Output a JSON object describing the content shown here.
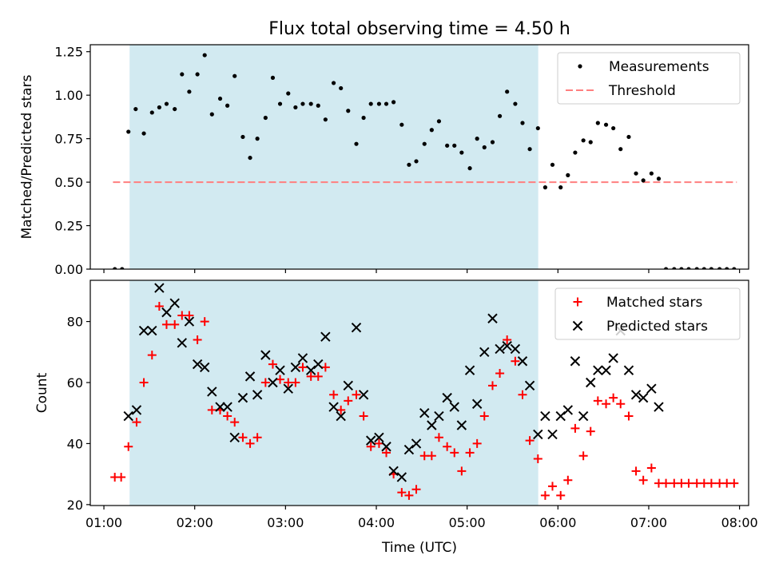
{
  "title": "Flux total observing time = 4.50 h",
  "colors": {
    "shade": "#add8e6",
    "measurements": "#000000",
    "threshold": "#ff7f7f",
    "matched": "#ff0000",
    "predicted": "#000000"
  },
  "chart_data": [
    {
      "type": "scatter",
      "ylabel": "Matched/Predicted stars",
      "xlim": [
        0.85,
        8.1
      ],
      "ylim": [
        0,
        1.29
      ],
      "yticks": [
        0,
        0.25,
        0.5,
        0.75,
        1.0,
        1.25
      ],
      "ytick_labels": [
        "0.00",
        "0.25",
        "0.50",
        "0.75",
        "1.00",
        "1.25"
      ],
      "shaded_span": [
        1.283,
        5.783
      ],
      "legend": {
        "placement": "top-right",
        "entries": [
          "Measurements",
          "Threshold"
        ]
      },
      "threshold": {
        "name": "Threshold",
        "value": 0.5,
        "x_range": [
          1.1,
          7.97
        ]
      },
      "series": [
        {
          "name": "Measurements",
          "points": [
            [
              1.12,
              0.0
            ],
            [
              1.2,
              0.0
            ],
            [
              1.27,
              0.79
            ],
            [
              1.35,
              0.92
            ],
            [
              1.44,
              0.78
            ],
            [
              1.53,
              0.9
            ],
            [
              1.61,
              0.93
            ],
            [
              1.69,
              0.95
            ],
            [
              1.78,
              0.92
            ],
            [
              1.86,
              1.12
            ],
            [
              1.94,
              1.02
            ],
            [
              2.03,
              1.12
            ],
            [
              2.11,
              1.23
            ],
            [
              2.19,
              0.89
            ],
            [
              2.28,
              0.98
            ],
            [
              2.36,
              0.94
            ],
            [
              2.44,
              1.11
            ],
            [
              2.53,
              0.76
            ],
            [
              2.61,
              0.64
            ],
            [
              2.69,
              0.75
            ],
            [
              2.78,
              0.87
            ],
            [
              2.86,
              1.1
            ],
            [
              2.94,
              0.95
            ],
            [
              3.03,
              1.01
            ],
            [
              3.11,
              0.93
            ],
            [
              3.19,
              0.95
            ],
            [
              3.28,
              0.95
            ],
            [
              3.36,
              0.94
            ],
            [
              3.44,
              0.86
            ],
            [
              3.53,
              1.07
            ],
            [
              3.61,
              1.04
            ],
            [
              3.69,
              0.91
            ],
            [
              3.78,
              0.72
            ],
            [
              3.86,
              0.87
            ],
            [
              3.94,
              0.95
            ],
            [
              4.03,
              0.95
            ],
            [
              4.11,
              0.95
            ],
            [
              4.19,
              0.96
            ],
            [
              4.28,
              0.83
            ],
            [
              4.36,
              0.6
            ],
            [
              4.44,
              0.62
            ],
            [
              4.53,
              0.72
            ],
            [
              4.61,
              0.8
            ],
            [
              4.69,
              0.85
            ],
            [
              4.78,
              0.71
            ],
            [
              4.86,
              0.71
            ],
            [
              4.94,
              0.67
            ],
            [
              5.03,
              0.58
            ],
            [
              5.11,
              0.75
            ],
            [
              5.19,
              0.7
            ],
            [
              5.28,
              0.73
            ],
            [
              5.36,
              0.88
            ],
            [
              5.44,
              1.02
            ],
            [
              5.53,
              0.95
            ],
            [
              5.61,
              0.84
            ],
            [
              5.69,
              0.69
            ],
            [
              5.78,
              0.81
            ],
            [
              5.86,
              0.47
            ],
            [
              5.94,
              0.6
            ],
            [
              6.03,
              0.47
            ],
            [
              6.11,
              0.54
            ],
            [
              6.19,
              0.67
            ],
            [
              6.28,
              0.74
            ],
            [
              6.36,
              0.73
            ],
            [
              6.44,
              0.84
            ],
            [
              6.53,
              0.83
            ],
            [
              6.61,
              0.81
            ],
            [
              6.69,
              0.69
            ],
            [
              6.78,
              0.76
            ],
            [
              6.86,
              0.55
            ],
            [
              6.94,
              0.51
            ],
            [
              7.03,
              0.55
            ],
            [
              7.11,
              0.52
            ],
            [
              7.19,
              0.0
            ],
            [
              7.28,
              0.0
            ],
            [
              7.36,
              0.0
            ],
            [
              7.44,
              0.0
            ],
            [
              7.53,
              0.0
            ],
            [
              7.61,
              0.0
            ],
            [
              7.69,
              0.0
            ],
            [
              7.78,
              0.0
            ],
            [
              7.86,
              0.0
            ],
            [
              7.94,
              0.0
            ]
          ]
        }
      ]
    },
    {
      "type": "scatter",
      "xlabel": "Time (UTC)",
      "ylabel": "Count",
      "xlim": [
        0.85,
        8.1
      ],
      "ylim": [
        19.7,
        93.5
      ],
      "xticks": [
        1,
        2,
        3,
        4,
        5,
        6,
        7,
        8
      ],
      "xtick_labels": [
        "01:00",
        "02:00",
        "03:00",
        "04:00",
        "05:00",
        "06:00",
        "07:00",
        "08:00"
      ],
      "yticks": [
        20,
        40,
        60,
        80
      ],
      "ytick_labels": [
        "20",
        "40",
        "60",
        "80"
      ],
      "shaded_span": [
        1.283,
        5.783
      ],
      "legend": {
        "placement": "top-right",
        "entries": [
          "Matched stars",
          "Predicted stars"
        ]
      },
      "series": [
        {
          "name": "Matched stars",
          "marker": "+",
          "points": [
            [
              1.12,
              29
            ],
            [
              1.19,
              29
            ],
            [
              1.27,
              39
            ],
            [
              1.36,
              47
            ],
            [
              1.44,
              60
            ],
            [
              1.53,
              69
            ],
            [
              1.61,
              85
            ],
            [
              1.69,
              79
            ],
            [
              1.78,
              79
            ],
            [
              1.86,
              82
            ],
            [
              1.94,
              82
            ],
            [
              2.03,
              74
            ],
            [
              2.11,
              80
            ],
            [
              2.19,
              51
            ],
            [
              2.28,
              51
            ],
            [
              2.36,
              49
            ],
            [
              2.44,
              47
            ],
            [
              2.53,
              42
            ],
            [
              2.61,
              40
            ],
            [
              2.69,
              42
            ],
            [
              2.78,
              60
            ],
            [
              2.86,
              66
            ],
            [
              2.94,
              61
            ],
            [
              3.03,
              60
            ],
            [
              3.11,
              60
            ],
            [
              3.19,
              65
            ],
            [
              3.28,
              62
            ],
            [
              3.36,
              62
            ],
            [
              3.44,
              65
            ],
            [
              3.53,
              56
            ],
            [
              3.61,
              51
            ],
            [
              3.69,
              54
            ],
            [
              3.78,
              56
            ],
            [
              3.86,
              49
            ],
            [
              3.94,
              39
            ],
            [
              4.03,
              40
            ],
            [
              4.11,
              37
            ],
            [
              4.19,
              30
            ],
            [
              4.28,
              24
            ],
            [
              4.36,
              23
            ],
            [
              4.44,
              25
            ],
            [
              4.53,
              36
            ],
            [
              4.61,
              36
            ],
            [
              4.69,
              42
            ],
            [
              4.78,
              39
            ],
            [
              4.86,
              37
            ],
            [
              4.94,
              31
            ],
            [
              5.03,
              37
            ],
            [
              5.11,
              40
            ],
            [
              5.19,
              49
            ],
            [
              5.28,
              59
            ],
            [
              5.36,
              63
            ],
            [
              5.44,
              74
            ],
            [
              5.53,
              67
            ],
            [
              5.61,
              56
            ],
            [
              5.69,
              41
            ],
            [
              5.78,
              35
            ],
            [
              5.86,
              23
            ],
            [
              5.94,
              26
            ],
            [
              6.03,
              23
            ],
            [
              6.11,
              28
            ],
            [
              6.19,
              45
            ],
            [
              6.28,
              36
            ],
            [
              6.36,
              44
            ],
            [
              6.44,
              54
            ],
            [
              6.53,
              53
            ],
            [
              6.61,
              55
            ],
            [
              6.69,
              53
            ],
            [
              6.78,
              49
            ],
            [
              6.86,
              31
            ],
            [
              6.94,
              28
            ],
            [
              7.03,
              32
            ],
            [
              7.11,
              27
            ],
            [
              7.19,
              27
            ],
            [
              7.28,
              27
            ],
            [
              7.36,
              27
            ],
            [
              7.44,
              27
            ],
            [
              7.53,
              27
            ],
            [
              7.61,
              27
            ],
            [
              7.69,
              27
            ],
            [
              7.78,
              27
            ],
            [
              7.86,
              27
            ],
            [
              7.94,
              27
            ]
          ]
        },
        {
          "name": "Predicted stars",
          "marker": "x",
          "points": [
            [
              1.27,
              49
            ],
            [
              1.36,
              51
            ],
            [
              1.44,
              77
            ],
            [
              1.53,
              77
            ],
            [
              1.61,
              91
            ],
            [
              1.69,
              83
            ],
            [
              1.78,
              86
            ],
            [
              1.86,
              73
            ],
            [
              1.94,
              80
            ],
            [
              2.03,
              66
            ],
            [
              2.11,
              65
            ],
            [
              2.19,
              57
            ],
            [
              2.28,
              52
            ],
            [
              2.36,
              52
            ],
            [
              2.44,
              42
            ],
            [
              2.53,
              55
            ],
            [
              2.61,
              62
            ],
            [
              2.69,
              56
            ],
            [
              2.78,
              69
            ],
            [
              2.86,
              60
            ],
            [
              2.94,
              64
            ],
            [
              3.03,
              58
            ],
            [
              3.11,
              65
            ],
            [
              3.19,
              68
            ],
            [
              3.28,
              64
            ],
            [
              3.36,
              66
            ],
            [
              3.44,
              75
            ],
            [
              3.53,
              52
            ],
            [
              3.61,
              49
            ],
            [
              3.69,
              59
            ],
            [
              3.78,
              78
            ],
            [
              3.86,
              56
            ],
            [
              3.94,
              41
            ],
            [
              4.03,
              42
            ],
            [
              4.11,
              39
            ],
            [
              4.19,
              31
            ],
            [
              4.28,
              29
            ],
            [
              4.36,
              38
            ],
            [
              4.44,
              40
            ],
            [
              4.53,
              50
            ],
            [
              4.61,
              46
            ],
            [
              4.69,
              49
            ],
            [
              4.78,
              55
            ],
            [
              4.86,
              52
            ],
            [
              4.94,
              46
            ],
            [
              5.03,
              64
            ],
            [
              5.11,
              53
            ],
            [
              5.19,
              70
            ],
            [
              5.28,
              81
            ],
            [
              5.36,
              71
            ],
            [
              5.44,
              72
            ],
            [
              5.53,
              71
            ],
            [
              5.61,
              67
            ],
            [
              5.69,
              59
            ],
            [
              5.78,
              43
            ],
            [
              5.86,
              49
            ],
            [
              5.94,
              43
            ],
            [
              6.03,
              49
            ],
            [
              6.11,
              51
            ],
            [
              6.19,
              67
            ],
            [
              6.28,
              49
            ],
            [
              6.36,
              60
            ],
            [
              6.44,
              64
            ],
            [
              6.53,
              64
            ],
            [
              6.61,
              68
            ],
            [
              6.69,
              77
            ],
            [
              6.78,
              64
            ],
            [
              6.86,
              56
            ],
            [
              6.94,
              55
            ],
            [
              7.03,
              58
            ],
            [
              7.11,
              52
            ]
          ]
        }
      ]
    }
  ]
}
